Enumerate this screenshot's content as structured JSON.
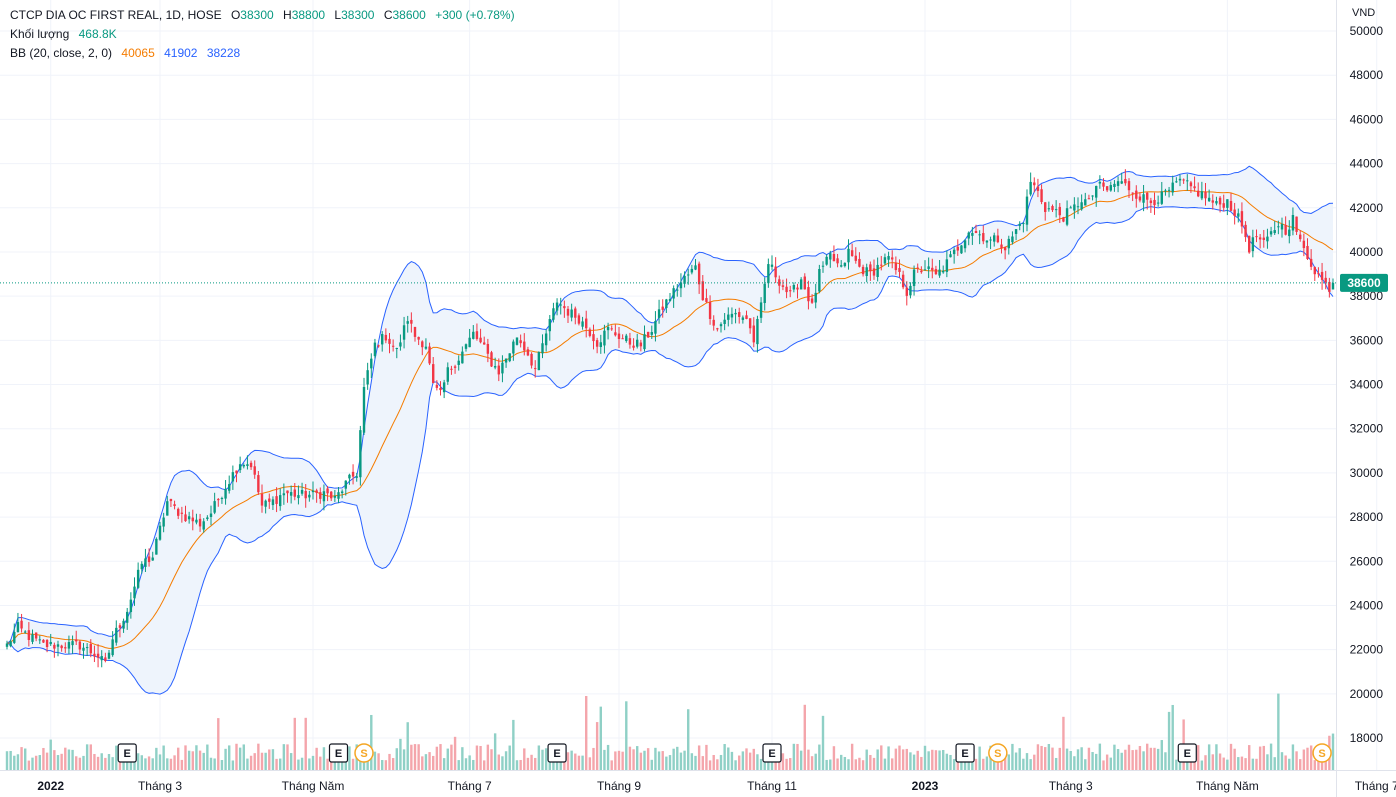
{
  "legend": {
    "symbol_line": "CTCP DIA OC FIRST REAL, 1D, HOSE",
    "open_label": "O",
    "open": "38300",
    "high_label": "H",
    "high": "38800",
    "low_label": "L",
    "low": "38300",
    "close_label": "C",
    "close": "38600",
    "change": "+300 (+0.78%)",
    "volume_label": "Khối lượng",
    "volume": "468.8K",
    "bb_label": "BB (20, close, 2, 0)",
    "bb_basis": "40065",
    "bb_upper": "41902",
    "bb_lower": "38228"
  },
  "colors": {
    "up": "#089981",
    "down": "#f23645",
    "up_volume": "#8fd0c6",
    "down_volume": "#f4a5ab",
    "bb_basis": "#f57c00",
    "bb_band": "#2962ff",
    "bb_fill": "#eef4fc",
    "price_label_bg": "#089981",
    "grid": "#f0f3fa",
    "event_S": "#f5a623"
  },
  "chart_data": {
    "type": "candlestick",
    "price_unit": "VND",
    "last_price": 38600,
    "ylim": [
      17000,
      50500
    ],
    "y_ticks": [
      18000,
      20000,
      22000,
      24000,
      26000,
      28000,
      30000,
      32000,
      34000,
      36000,
      38000,
      40000,
      42000,
      44000,
      46000,
      48000,
      50000
    ],
    "x_labels": [
      {
        "label": "2022",
        "index": 12,
        "bold": true
      },
      {
        "label": "Tháng 3",
        "index": 42
      },
      {
        "label": "Tháng Năm",
        "index": 84
      },
      {
        "label": "Tháng 7",
        "index": 127
      },
      {
        "label": "Tháng 9",
        "index": 168
      },
      {
        "label": "Tháng 11",
        "index": 210
      },
      {
        "label": "2023",
        "index": 252,
        "bold": true
      },
      {
        "label": "Tháng 3",
        "index": 292
      },
      {
        "label": "Tháng Năm",
        "index": 335
      },
      {
        "label": "Tháng 7",
        "index": 376
      }
    ],
    "events": [
      {
        "type": "E",
        "index": 33
      },
      {
        "type": "E",
        "index": 91
      },
      {
        "type": "S",
        "index": 98
      },
      {
        "type": "E",
        "index": 151
      },
      {
        "type": "E",
        "index": 210
      },
      {
        "type": "E",
        "index": 263
      },
      {
        "type": "S",
        "index": 272
      },
      {
        "type": "E",
        "index": 324
      },
      {
        "type": "S",
        "index": 361
      }
    ],
    "close_anchors": [
      [
        0,
        22200
      ],
      [
        3,
        23000
      ],
      [
        6,
        22600
      ],
      [
        10,
        22200
      ],
      [
        14,
        22200
      ],
      [
        20,
        22200
      ],
      [
        25,
        21700
      ],
      [
        27,
        21300
      ],
      [
        29,
        22500
      ],
      [
        33,
        23800
      ],
      [
        37,
        25900
      ],
      [
        40,
        26200
      ],
      [
        44,
        28700
      ],
      [
        48,
        28100
      ],
      [
        53,
        27700
      ],
      [
        56,
        28200
      ],
      [
        60,
        29400
      ],
      [
        64,
        30500
      ],
      [
        67,
        30400
      ],
      [
        70,
        28500
      ],
      [
        73,
        28700
      ],
      [
        76,
        29100
      ],
      [
        80,
        29000
      ],
      [
        84,
        29000
      ],
      [
        87,
        29100
      ],
      [
        90,
        28800
      ],
      [
        93,
        29500
      ],
      [
        96,
        30000
      ],
      [
        98,
        33800
      ],
      [
        101,
        35800
      ],
      [
        104,
        36200
      ],
      [
        107,
        35500
      ],
      [
        110,
        37000
      ],
      [
        112,
        36200
      ],
      [
        115,
        35800
      ],
      [
        117,
        33900
      ],
      [
        119,
        33500
      ],
      [
        121,
        34600
      ],
      [
        124,
        35200
      ],
      [
        128,
        36300
      ],
      [
        131,
        35600
      ],
      [
        133,
        35000
      ],
      [
        135,
        34600
      ],
      [
        138,
        35500
      ],
      [
        140,
        36200
      ],
      [
        143,
        35400
      ],
      [
        145,
        34700
      ],
      [
        148,
        36300
      ],
      [
        151,
        37800
      ],
      [
        154,
        37300
      ],
      [
        157,
        37000
      ],
      [
        160,
        36400
      ],
      [
        162,
        35900
      ],
      [
        165,
        36500
      ],
      [
        168,
        36200
      ],
      [
        171,
        35900
      ],
      [
        174,
        35800
      ],
      [
        177,
        36500
      ],
      [
        180,
        37500
      ],
      [
        183,
        38200
      ],
      [
        186,
        38800
      ],
      [
        189,
        39300
      ],
      [
        191,
        38000
      ],
      [
        193,
        37200
      ],
      [
        195,
        36500
      ],
      [
        197,
        37000
      ],
      [
        200,
        37200
      ],
      [
        203,
        37000
      ],
      [
        205,
        36000
      ],
      [
        207,
        37500
      ],
      [
        209,
        39500
      ],
      [
        212,
        38700
      ],
      [
        215,
        38000
      ],
      [
        218,
        38800
      ],
      [
        221,
        37500
      ],
      [
        223,
        39000
      ],
      [
        226,
        39800
      ],
      [
        229,
        39200
      ],
      [
        231,
        40000
      ],
      [
        234,
        39300
      ],
      [
        237,
        39000
      ],
      [
        240,
        39500
      ],
      [
        242,
        39700
      ],
      [
        245,
        38900
      ],
      [
        247,
        38200
      ],
      [
        249,
        39000
      ],
      [
        252,
        39300
      ],
      [
        255,
        38900
      ],
      [
        258,
        39500
      ],
      [
        261,
        40200
      ],
      [
        264,
        41000
      ],
      [
        267,
        40800
      ],
      [
        270,
        40500
      ],
      [
        272,
        40600
      ],
      [
        274,
        40200
      ],
      [
        276,
        40700
      ],
      [
        279,
        41500
      ],
      [
        281,
        43200
      ],
      [
        283,
        42700
      ],
      [
        285,
        42000
      ],
      [
        288,
        41800
      ],
      [
        290,
        41600
      ],
      [
        293,
        42000
      ],
      [
        295,
        42400
      ],
      [
        297,
        42200
      ],
      [
        299,
        43000
      ],
      [
        302,
        42800
      ],
      [
        305,
        43200
      ],
      [
        308,
        42900
      ],
      [
        311,
        42500
      ],
      [
        314,
        42300
      ],
      [
        317,
        42500
      ],
      [
        320,
        42900
      ],
      [
        322,
        43200
      ],
      [
        324,
        43000
      ],
      [
        326,
        42800
      ],
      [
        329,
        42500
      ],
      [
        332,
        42100
      ],
      [
        335,
        42300
      ],
      [
        337,
        41800
      ],
      [
        339,
        41200
      ],
      [
        341,
        40200
      ],
      [
        343,
        40700
      ],
      [
        345,
        40300
      ],
      [
        347,
        40800
      ],
      [
        349,
        41300
      ],
      [
        351,
        41000
      ],
      [
        353,
        41500
      ],
      [
        355,
        40400
      ],
      [
        357,
        39800
      ],
      [
        359,
        39200
      ],
      [
        361,
        38700
      ],
      [
        363,
        38400
      ],
      [
        364,
        38600
      ]
    ],
    "volume_unit": "shares",
    "last_volume": 468800,
    "volume_max": 1480000
  }
}
